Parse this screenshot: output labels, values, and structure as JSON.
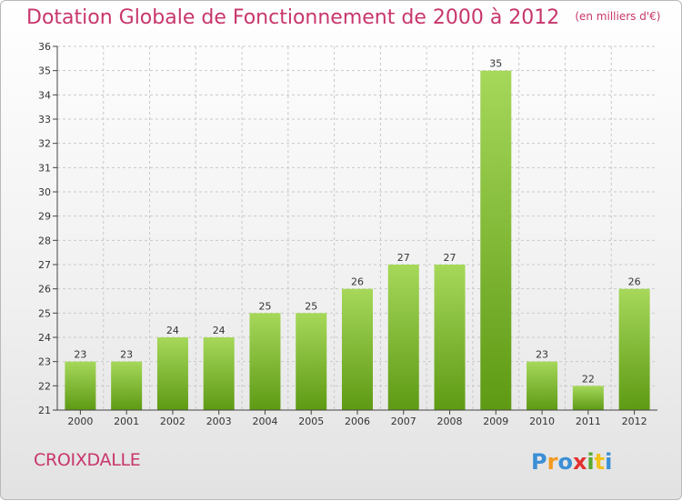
{
  "header": {
    "title": "Dotation Globale de Fonctionnement de 2000 à 2012",
    "unit": "(en milliers d'€)"
  },
  "footer": {
    "commune": "CROIXDALLE",
    "logo_text": "Proxiti"
  },
  "colors": {
    "title": "#c8366c",
    "bar_top": "#a6d85a",
    "bar_bottom": "#5e9a14",
    "grid": "#c9c9c9"
  },
  "chart_data": {
    "type": "bar",
    "categories": [
      "2000",
      "2001",
      "2002",
      "2003",
      "2004",
      "2005",
      "2006",
      "2007",
      "2008",
      "2009",
      "2010",
      "2011",
      "2012"
    ],
    "values": [
      23,
      23,
      24,
      24,
      25,
      25,
      26,
      27,
      27,
      35,
      23,
      22,
      26
    ],
    "ylim": [
      21,
      36
    ],
    "yticks": [
      21,
      22,
      23,
      24,
      25,
      26,
      27,
      28,
      29,
      30,
      31,
      32,
      33,
      34,
      35,
      36
    ],
    "grid": true,
    "data_labels": true,
    "legend": "none"
  }
}
